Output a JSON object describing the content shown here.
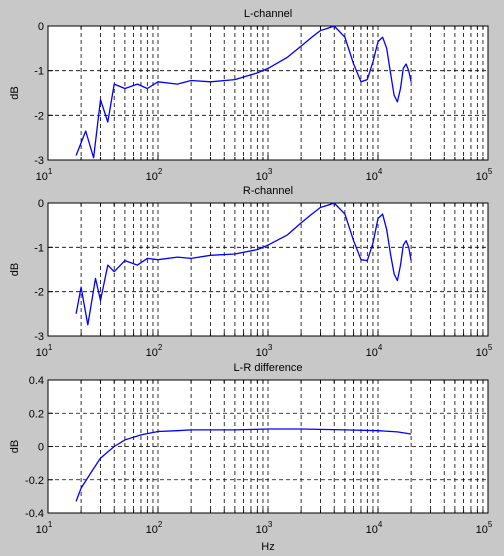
{
  "chart_data": [
    {
      "type": "line",
      "title": "L-channel",
      "xlabel": "",
      "ylabel": "dB",
      "xscale": "log",
      "xlim": [
        10,
        100000
      ],
      "ylim": [
        -3,
        0
      ],
      "xticks": [
        {
          "base": "10",
          "exp": "1"
        },
        {
          "base": "10",
          "exp": "2"
        },
        {
          "base": "10",
          "exp": "3"
        },
        {
          "base": "10",
          "exp": "4"
        },
        {
          "base": "10",
          "exp": "5"
        }
      ],
      "yticks": [
        "-3",
        "-2",
        "-1",
        "0"
      ],
      "grid": true,
      "series": [
        {
          "color": "#0000ff",
          "x": [
            18,
            22,
            26,
            30,
            35,
            40,
            50,
            65,
            80,
            100,
            150,
            200,
            300,
            500,
            800,
            1000,
            1500,
            2000,
            2500,
            3000,
            3500,
            4000,
            5000,
            6000,
            7000,
            8000,
            9000,
            10000,
            11000,
            12000,
            13000,
            14000,
            15000,
            16000,
            17000,
            18000,
            19000,
            20000
          ],
          "y": [
            -2.9,
            -2.35,
            -2.95,
            -1.65,
            -2.15,
            -1.3,
            -1.4,
            -1.3,
            -1.4,
            -1.25,
            -1.3,
            -1.22,
            -1.25,
            -1.2,
            -1.05,
            -0.95,
            -0.7,
            -0.45,
            -0.25,
            -0.1,
            -0.05,
            0.0,
            -0.25,
            -0.85,
            -1.25,
            -1.2,
            -0.8,
            -0.35,
            -0.25,
            -0.5,
            -1.05,
            -1.55,
            -1.7,
            -1.4,
            -0.95,
            -0.85,
            -1.0,
            -1.25
          ]
        }
      ]
    },
    {
      "type": "line",
      "title": "R-channel",
      "xlabel": "",
      "ylabel": "dB",
      "xscale": "log",
      "xlim": [
        10,
        100000
      ],
      "ylim": [
        -3,
        0
      ],
      "xticks": [
        {
          "base": "10",
          "exp": "1"
        },
        {
          "base": "10",
          "exp": "2"
        },
        {
          "base": "10",
          "exp": "3"
        },
        {
          "base": "10",
          "exp": "4"
        },
        {
          "base": "10",
          "exp": "5"
        }
      ],
      "yticks": [
        "-3",
        "-2",
        "-1",
        "0"
      ],
      "grid": true,
      "series": [
        {
          "color": "#0000ff",
          "x": [
            18,
            20,
            23,
            27,
            30,
            35,
            40,
            50,
            65,
            80,
            100,
            150,
            200,
            300,
            500,
            800,
            1000,
            1500,
            2000,
            2500,
            3000,
            3500,
            4000,
            5000,
            6000,
            7000,
            8000,
            9000,
            10000,
            11000,
            12000,
            13000,
            14000,
            15000,
            16000,
            17000,
            18000,
            19000,
            20000
          ],
          "y": [
            -2.5,
            -1.9,
            -2.75,
            -1.7,
            -2.2,
            -1.4,
            -1.55,
            -1.3,
            -1.4,
            -1.25,
            -1.28,
            -1.22,
            -1.25,
            -1.18,
            -1.15,
            -1.05,
            -0.95,
            -0.72,
            -0.45,
            -0.25,
            -0.1,
            -0.05,
            0.0,
            -0.25,
            -0.85,
            -1.28,
            -1.3,
            -0.9,
            -0.35,
            -0.25,
            -0.6,
            -1.15,
            -1.6,
            -1.75,
            -1.4,
            -0.95,
            -0.85,
            -1.0,
            -1.3
          ]
        }
      ]
    },
    {
      "type": "line",
      "title": "L-R difference",
      "xlabel": "Hz",
      "ylabel": "dB",
      "xscale": "log",
      "xlim": [
        10,
        100000
      ],
      "ylim": [
        -0.4,
        0.4
      ],
      "xticks": [
        {
          "base": "10",
          "exp": "1"
        },
        {
          "base": "10",
          "exp": "2"
        },
        {
          "base": "10",
          "exp": "3"
        },
        {
          "base": "10",
          "exp": "4"
        },
        {
          "base": "10",
          "exp": "5"
        }
      ],
      "yticks": [
        "-0.4",
        "-0.2",
        "0",
        "0.2",
        "0.4"
      ],
      "grid": true,
      "series": [
        {
          "color": "#0000ff",
          "x": [
            18,
            20,
            25,
            30,
            40,
            50,
            70,
            100,
            150,
            200,
            300,
            500,
            1000,
            2000,
            5000,
            10000,
            15000,
            20000
          ],
          "y": [
            -0.33,
            -0.25,
            -0.15,
            -0.07,
            0.0,
            0.04,
            0.07,
            0.09,
            0.095,
            0.1,
            0.1,
            0.1,
            0.105,
            0.105,
            0.1,
            0.095,
            0.088,
            0.075
          ]
        }
      ]
    }
  ]
}
